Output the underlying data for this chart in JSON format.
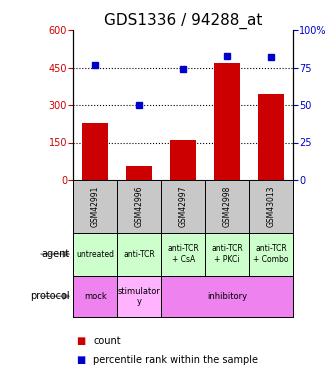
{
  "title": "GDS1336 / 94288_at",
  "samples": [
    "GSM42991",
    "GSM42996",
    "GSM42997",
    "GSM42998",
    "GSM43013"
  ],
  "counts": [
    230,
    55,
    160,
    470,
    345
  ],
  "percentile_ranks": [
    77,
    50,
    74,
    83,
    82
  ],
  "ylim_left": [
    0,
    600
  ],
  "ylim_right": [
    0,
    100
  ],
  "yticks_left": [
    0,
    150,
    300,
    450,
    600
  ],
  "yticks_right": [
    0,
    25,
    50,
    75,
    100
  ],
  "bar_color": "#cc0000",
  "dot_color": "#0000cc",
  "agent_labels": [
    "untreated",
    "anti-TCR",
    "anti-TCR\n+ CsA",
    "anti-TCR\n+ PKCi",
    "anti-TCR\n+ Combo"
  ],
  "agent_bg": "#ccffcc",
  "protocol_groups": [
    {
      "label": "mock",
      "span": [
        0,
        1
      ],
      "color": "#ee82ee"
    },
    {
      "label": "stimulator\ny",
      "span": [
        1,
        2
      ],
      "color": "#ffb3ff"
    },
    {
      "label": "inhibitory",
      "span": [
        2,
        5
      ],
      "color": "#ee82ee"
    }
  ],
  "sample_bg": "#c8c8c8",
  "legend_count_color": "#cc0000",
  "legend_pct_color": "#0000cc",
  "title_fontsize": 11,
  "tick_fontsize": 7,
  "label_fontsize": 7
}
